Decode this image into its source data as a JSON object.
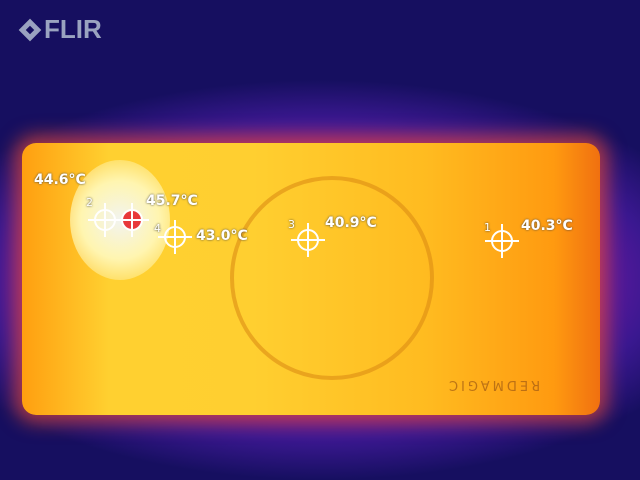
{
  "logo": {
    "text": "FLIR"
  },
  "device_text": "REDMAGIC",
  "measurements": [
    {
      "id": "1",
      "temp": "40.3°C"
    },
    {
      "id": "2",
      "temp": "44.6°C"
    },
    {
      "id": "3",
      "temp": "40.9°C"
    },
    {
      "id": "4",
      "temp": "43.0°C"
    },
    {
      "id": "hot",
      "temp": "45.7°C"
    }
  ],
  "colors": {
    "hotspot_marker": "#e8383a",
    "marker": "#ffffff"
  }
}
